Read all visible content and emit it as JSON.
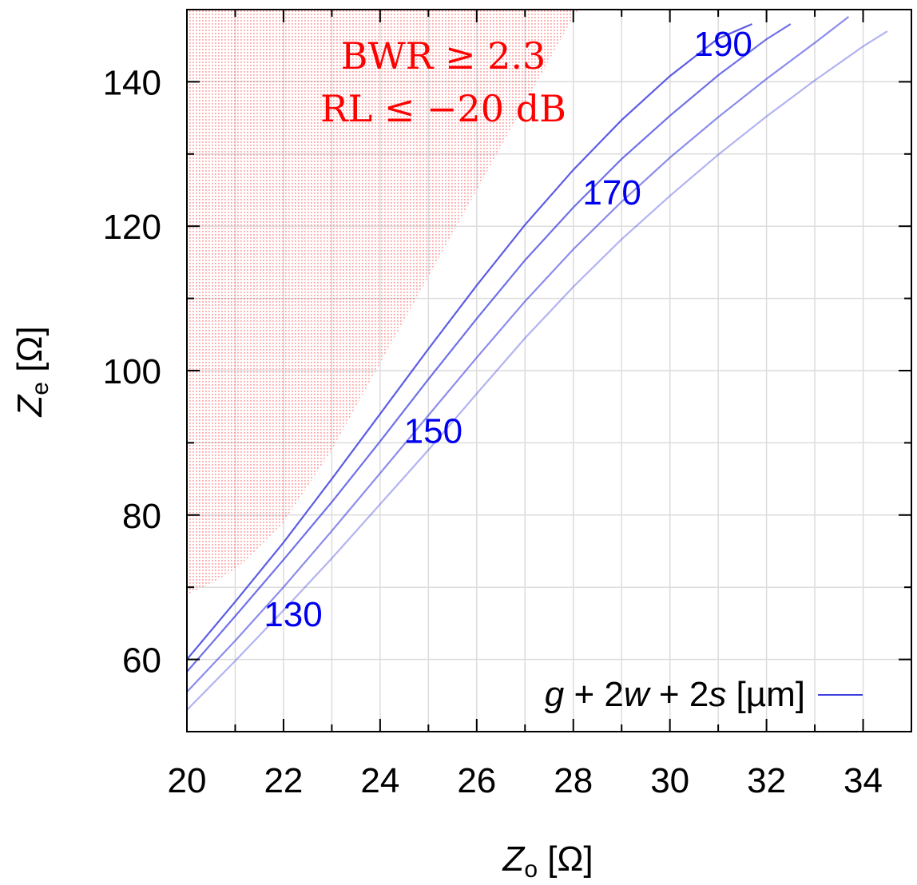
{
  "chart_data": {
    "type": "line",
    "xlabel": {
      "main": "Z",
      "sub": "o",
      "unit": " [Ω]"
    },
    "ylabel": {
      "main": "Z",
      "sub": "e",
      "unit": " [Ω]"
    },
    "xlim": [
      20,
      35
    ],
    "ylim": [
      50,
      150
    ],
    "xticks": [
      20,
      22,
      24,
      26,
      28,
      30,
      32,
      34
    ],
    "yticks": [
      60,
      80,
      100,
      120,
      140
    ],
    "grid": true,
    "region": {
      "label_lines": [
        "BWR ≥ 2.3",
        "RL ≤ −20 dB"
      ],
      "color": "#ff0000",
      "boundary": [
        [
          20.0,
          69
        ],
        [
          20.5,
          70.5
        ],
        [
          21.0,
          72.5
        ],
        [
          21.5,
          75.5
        ],
        [
          22.0,
          79
        ],
        [
          22.5,
          84
        ],
        [
          23.0,
          89
        ],
        [
          23.5,
          95
        ],
        [
          24.0,
          101
        ],
        [
          24.5,
          107
        ],
        [
          25.0,
          113
        ],
        [
          25.5,
          119
        ],
        [
          26.0,
          125
        ],
        [
          26.5,
          131
        ],
        [
          27.0,
          137
        ],
        [
          27.5,
          143
        ],
        [
          28.0,
          149
        ],
        [
          28.1,
          150
        ],
        [
          20.0,
          150
        ]
      ]
    },
    "series": [
      {
        "label": "190",
        "color": "#4040e0",
        "opacity": 0.85,
        "x": [
          20.0,
          21.0,
          22.0,
          23.0,
          24.0,
          25.0,
          26.0,
          27.0,
          28.0,
          29.0,
          30.0,
          31.0,
          31.7
        ],
        "y": [
          60.0,
          68.0,
          76.2,
          85.0,
          94.0,
          103.0,
          111.8,
          120.2,
          127.8,
          134.7,
          140.8,
          146.0,
          148.0
        ]
      },
      {
        "label": "170",
        "color": "#4040e0",
        "opacity": 0.75,
        "x": [
          20.0,
          21.0,
          22.0,
          23.0,
          24.0,
          25.0,
          26.0,
          27.0,
          28.0,
          29.0,
          30.0,
          31.0,
          32.0,
          32.5
        ],
        "y": [
          58.3,
          66.0,
          73.8,
          81.8,
          90.2,
          98.8,
          107.2,
          115.3,
          122.6,
          129.3,
          135.3,
          140.9,
          145.9,
          148.0
        ]
      },
      {
        "label": "150",
        "color": "#4040e0",
        "opacity": 0.6,
        "x": [
          20.0,
          21.0,
          22.0,
          23.0,
          24.0,
          25.0,
          26.0,
          27.0,
          28.0,
          29.0,
          30.0,
          31.0,
          32.0,
          33.0,
          33.7
        ],
        "y": [
          55.5,
          62.6,
          70.0,
          77.8,
          85.8,
          93.8,
          101.8,
          109.6,
          116.8,
          123.4,
          129.5,
          135.1,
          140.4,
          145.4,
          149.0
        ]
      },
      {
        "label": "130",
        "color": "#4040e0",
        "opacity": 0.4,
        "x": [
          20.0,
          21.0,
          22.0,
          23.0,
          24.0,
          25.0,
          26.0,
          27.0,
          28.0,
          29.0,
          30.0,
          31.0,
          32.0,
          33.0,
          34.0,
          34.5
        ],
        "y": [
          53.0,
          59.8,
          66.8,
          74.0,
          81.5,
          89.0,
          96.8,
          104.5,
          111.6,
          118.2,
          124.2,
          129.9,
          135.2,
          140.2,
          144.9,
          147.0
        ]
      }
    ],
    "curve_labels": [
      {
        "text": "190",
        "x": 31.1,
        "y": 143.6
      },
      {
        "text": "170",
        "x": 28.8,
        "y": 123.0
      },
      {
        "text": "150",
        "x": 25.1,
        "y": 90.0
      },
      {
        "text": "130",
        "x": 22.2,
        "y": 64.6
      }
    ],
    "legend": {
      "position": "bottom-right",
      "parts": [
        {
          "text": "g",
          "italic": true
        },
        {
          "text": " + 2",
          "italic": false
        },
        {
          "text": "w",
          "italic": true
        },
        {
          "text": " + 2",
          "italic": false
        },
        {
          "text": "s",
          "italic": true
        },
        {
          "text": " [µm]",
          "italic": false
        }
      ],
      "line_color": "#4040e0"
    }
  }
}
